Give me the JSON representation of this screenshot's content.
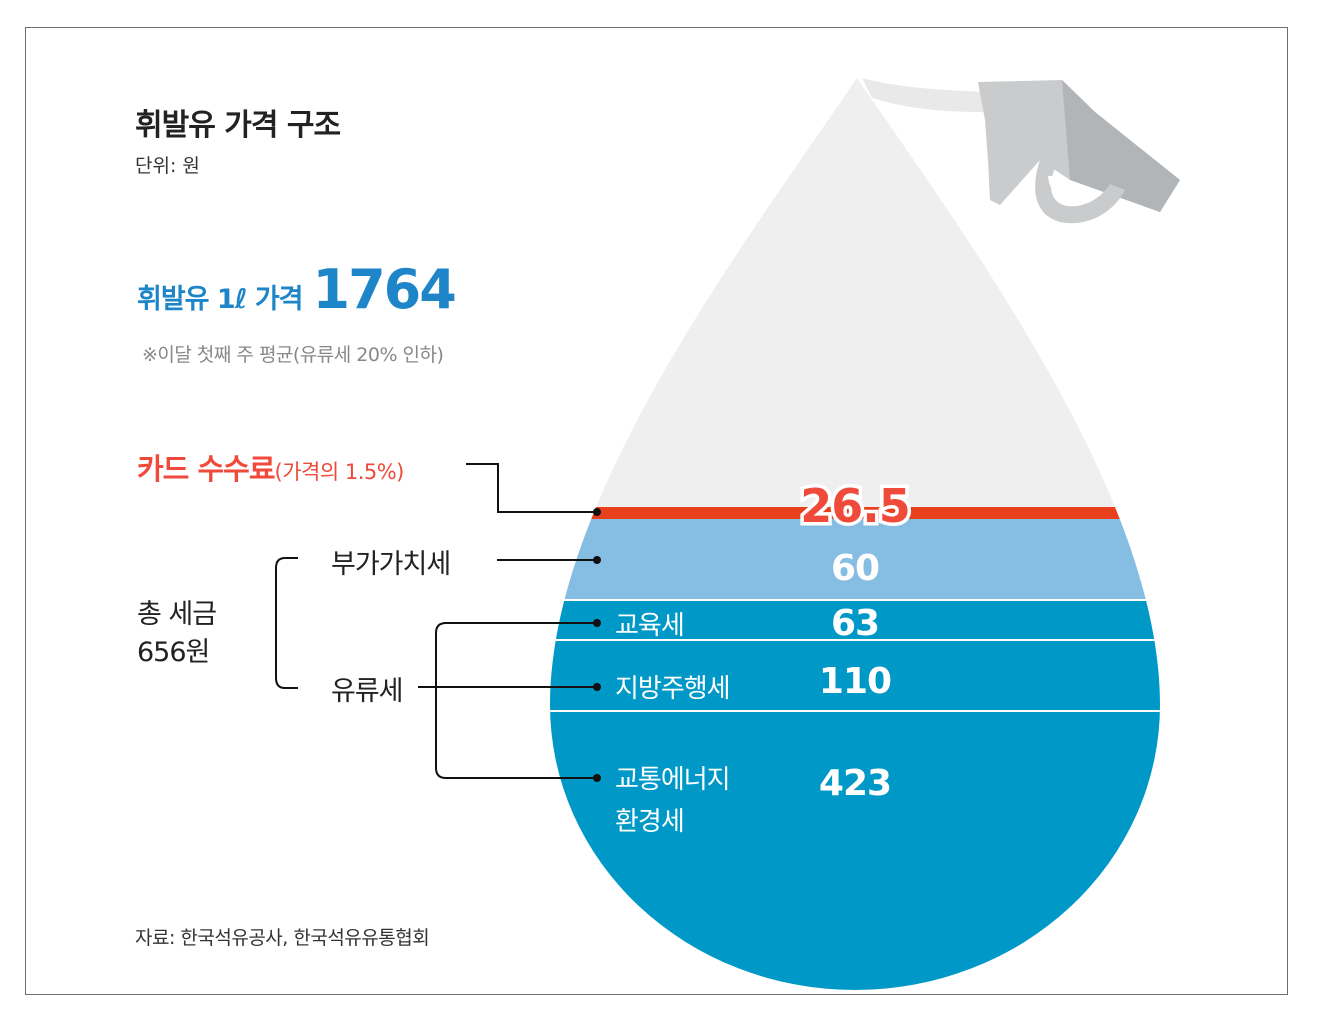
{
  "title": "휘발유 가격 구조",
  "unit": "단위: 원",
  "price": {
    "label": "휘발유 1ℓ 가격",
    "value": "1764"
  },
  "note": "※이달 첫째 주 평균(유류세 20% 인하)",
  "card_fee": {
    "label": "카드 수수료",
    "sublabel": "(가격의 1.5%)"
  },
  "total_tax": {
    "line1": "총 세금",
    "line2": "656원"
  },
  "groups": {
    "vat": "부가가치세",
    "fuel_tax": "유류세"
  },
  "source": "자료: 한국석유공사, 한국석유유통협회",
  "colors": {
    "card_fee": "#e8401c",
    "vat": "#86bde3",
    "fuel_tax": "#0099c7",
    "remainder": "#efefef",
    "accent": "#1e86c8",
    "card_text": "#ef4a3a"
  },
  "chart_data": {
    "type": "bar",
    "title": "휘발유 가격 구조",
    "unit": "원",
    "total": 1764,
    "stacked": true,
    "series": [
      {
        "name": "카드 수수료",
        "value": 26.5,
        "label": "26.5"
      },
      {
        "name": "부가가치세",
        "value": 60,
        "label": "60"
      },
      {
        "name": "교육세",
        "value": 63,
        "label": "63"
      },
      {
        "name": "지방주행세",
        "value": 110,
        "label": "110"
      },
      {
        "name": "교통에너지\n환경세",
        "line1": "교통에너지",
        "line2": "환경세",
        "value": 423,
        "label": "423"
      }
    ]
  }
}
